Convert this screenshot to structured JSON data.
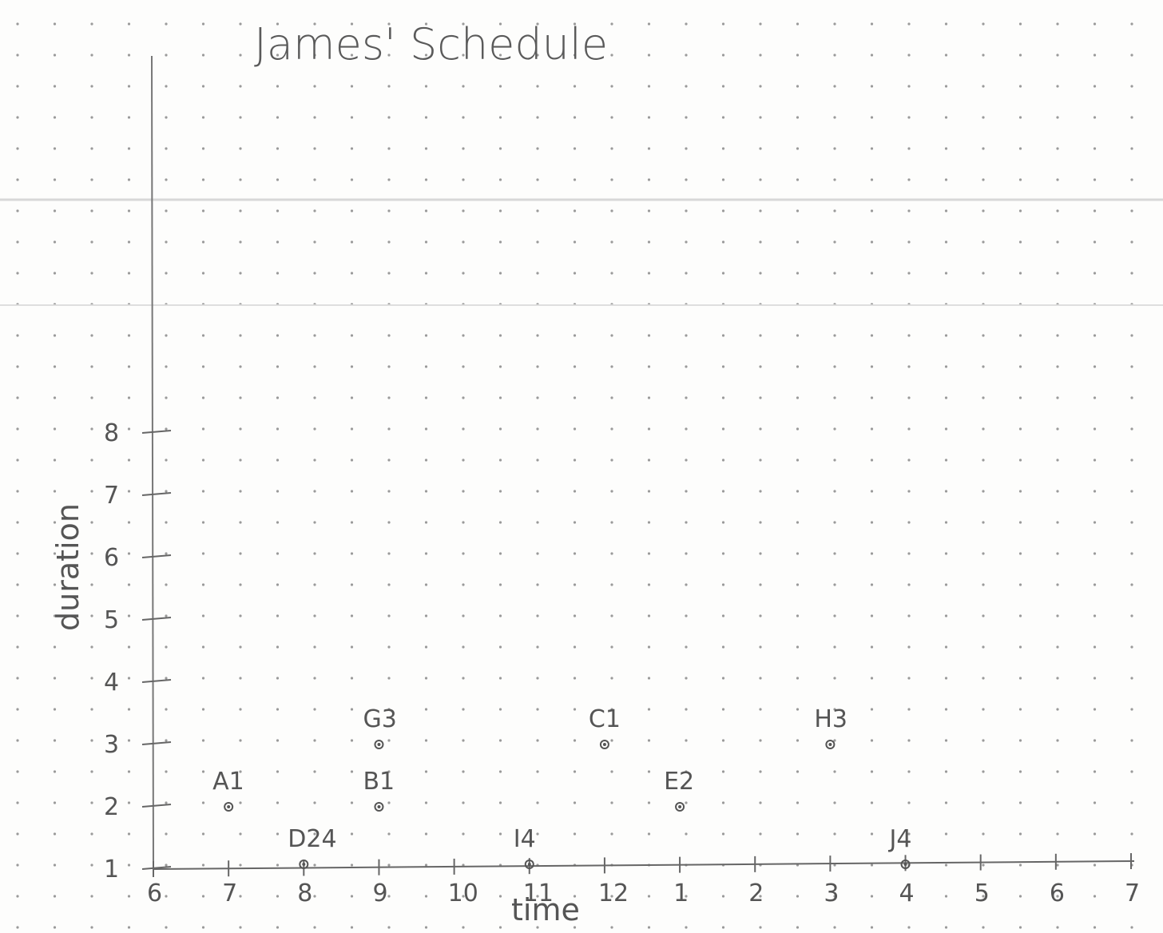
{
  "chart_data": {
    "type": "scatter",
    "title": "James' Schedule",
    "xlabel": "time",
    "ylabel": "duration",
    "x_ticks": [
      "6",
      "7",
      "8",
      "9",
      "10",
      "11",
      "12",
      "1",
      "2",
      "3",
      "4",
      "5",
      "6",
      "7"
    ],
    "y_ticks": [
      "1",
      "2",
      "3",
      "4",
      "5",
      "6",
      "7",
      "8"
    ],
    "xlim": [
      6,
      19
    ],
    "ylim": [
      1,
      8
    ],
    "grid": "dot grid paper",
    "points": [
      {
        "label": "A1",
        "x": 7,
        "y": 2
      },
      {
        "label": "B1",
        "x": 9,
        "y": 2
      },
      {
        "label": "G3",
        "x": 9,
        "y": 3
      },
      {
        "label": "D24",
        "x": 8,
        "y": 1
      },
      {
        "label": "I4",
        "x": 11,
        "y": 1
      },
      {
        "label": "C1",
        "x": 12,
        "y": 3
      },
      {
        "label": "E2",
        "x": 13,
        "y": 2
      },
      {
        "label": "H3",
        "x": 15,
        "y": 3
      },
      {
        "label": "J4",
        "x": 16,
        "y": 1
      }
    ]
  }
}
